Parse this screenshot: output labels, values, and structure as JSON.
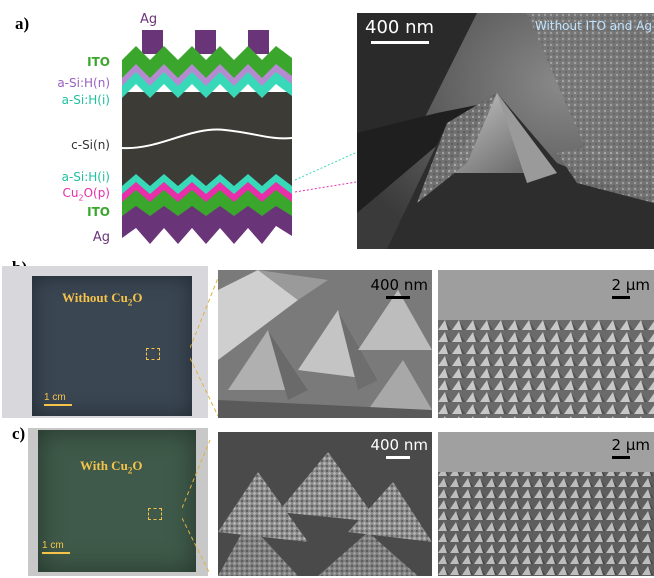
{
  "panels": {
    "a": "a)",
    "b": "b)",
    "c": "c)"
  },
  "schematic": {
    "top_contact": "Ag",
    "layers_top": [
      "ITO",
      "a-Si:H(n)",
      "a-Si:H(i)"
    ],
    "core": "c-Si(n)",
    "layers_bottom": [
      "a-Si:H(i)",
      "Cu2O(p)",
      "ITO"
    ],
    "bottom_contact": "Ag",
    "colors": {
      "ito": "#3aa62c",
      "asi_n": "#b48ad0",
      "asi_i": "#38d9b8",
      "cu2o": "#e62fa8",
      "ag": "#6a3479",
      "csi": "#3c3b36"
    }
  },
  "sem_a": {
    "scale": "400 nm",
    "caption": "Without ITO and Ag"
  },
  "row_b": {
    "photo_caption": "Without Cu",
    "photo_caption_sub": "2",
    "photo_caption_tail": "O",
    "photo_scale": "1 cm",
    "sem1_scale": "400 nm",
    "sem2_scale": "2 µm"
  },
  "row_c": {
    "photo_caption": "With Cu",
    "photo_caption_sub": "2",
    "photo_caption_tail": "O",
    "photo_scale": "1 cm",
    "sem1_scale": "400 nm",
    "sem2_scale": "2 µm"
  }
}
